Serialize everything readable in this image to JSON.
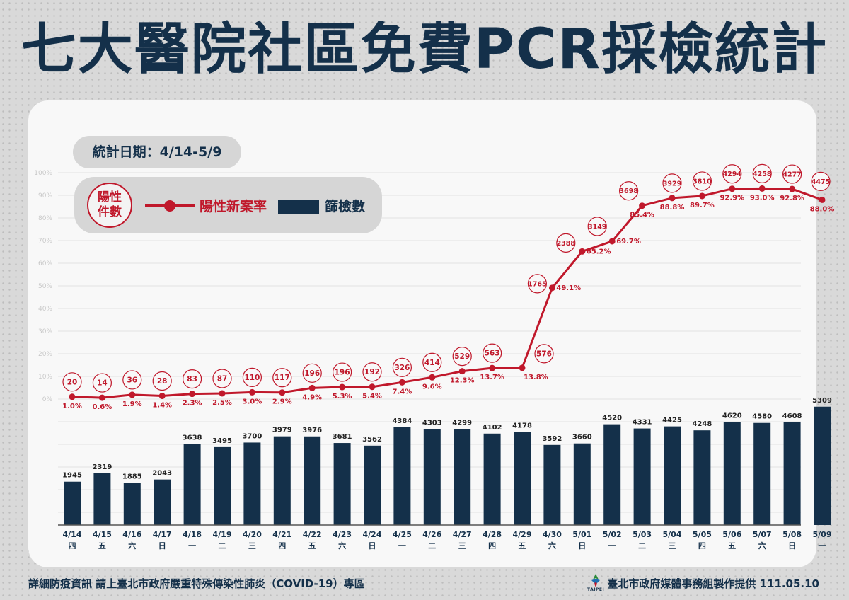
{
  "title": "七大醫院社區免費PCR採檢統計",
  "date_range": "統計日期：4/14-5/9",
  "legend": {
    "positive_circle_line1": "陽性",
    "positive_circle_line2": "件數",
    "rate_label": "陽性新案率",
    "screen_label": "篩檢數"
  },
  "colors": {
    "navy": "#14304a",
    "red": "#c0182b"
  },
  "footer": {
    "left": "詳細防疫資訊 請上臺北市政府嚴重特殊傳染性肺炎（COVID-19）專區",
    "right": "臺北市政府媒體事務組製作提供 111.05.10",
    "logo": "TAIPEI"
  },
  "chart_data": {
    "type": "bar",
    "categories": [
      "4/14",
      "4/15",
      "4/16",
      "4/17",
      "4/18",
      "4/19",
      "4/20",
      "4/21",
      "4/22",
      "4/23",
      "4/24",
      "4/25",
      "4/26",
      "4/27",
      "4/28",
      "4/29",
      "4/30",
      "5/01",
      "5/02",
      "5/03",
      "5/04",
      "5/05",
      "5/06",
      "5/07",
      "5/08",
      "5/09"
    ],
    "weekdays": [
      "四",
      "五",
      "六",
      "日",
      "一",
      "二",
      "三",
      "四",
      "五",
      "六",
      "日",
      "一",
      "二",
      "三",
      "四",
      "五",
      "六",
      "日",
      "一",
      "二",
      "三",
      "四",
      "五",
      "六",
      "日",
      "一"
    ],
    "series": [
      {
        "name": "篩檢數",
        "type": "bar",
        "values": [
          1945,
          2319,
          1885,
          2043,
          3638,
          3495,
          3700,
          3979,
          3976,
          3681,
          3562,
          4384,
          4303,
          4299,
          4102,
          4178,
          3592,
          3660,
          4520,
          4331,
          4425,
          4248,
          4620,
          4580,
          4608,
          5309
        ]
      },
      {
        "name": "陽性新案率",
        "type": "line",
        "values": [
          1.0,
          0.6,
          1.9,
          1.4,
          2.3,
          2.5,
          3.0,
          2.9,
          4.9,
          5.3,
          5.4,
          7.4,
          9.6,
          12.3,
          13.7,
          13.8,
          49.1,
          65.2,
          69.7,
          85.4,
          88.8,
          89.7,
          92.9,
          93.0,
          92.8,
          88.0
        ],
        "labels": [
          "1.0%",
          "0.6%",
          "1.9%",
          "1.4%",
          "2.3%",
          "2.5%",
          "3.0%",
          "2.9%",
          "4.9%",
          "5.3%",
          "5.4%",
          "7.4%",
          "9.6%",
          "12.3%",
          "13.7%",
          "13.8%",
          "49.1%",
          "65.2%",
          "69.7%",
          "85.4%",
          "88.8%",
          "89.7%",
          "92.9%",
          "93.0%",
          "92.8%",
          "88.0%"
        ]
      },
      {
        "name": "陽性件數",
        "type": "annotation",
        "values": [
          20,
          14,
          36,
          28,
          83,
          87,
          110,
          117,
          196,
          196,
          192,
          326,
          414,
          529,
          563,
          576,
          1765,
          2388,
          3149,
          3698,
          3929,
          3810,
          4294,
          4258,
          4277,
          4475
        ]
      }
    ],
    "y_rate_ticks": [
      "0%",
      "10%",
      "20%",
      "30%",
      "40%",
      "50%",
      "60%",
      "70%",
      "80%",
      "90%",
      "100%"
    ],
    "ylim_rate": [
      0,
      100
    ],
    "grid": true
  }
}
